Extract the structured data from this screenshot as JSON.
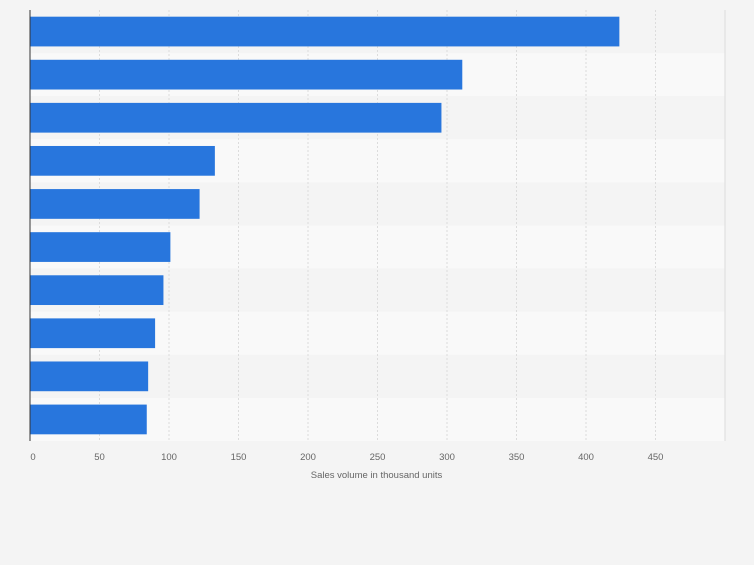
{
  "chart_data": {
    "type": "bar",
    "orientation": "horizontal",
    "categories": [
      "",
      "",
      "",
      "",
      "",
      "",
      "",
      "",
      "",
      ""
    ],
    "values": [
      424,
      311,
      296,
      133,
      122,
      101,
      96,
      90,
      85,
      84
    ],
    "title": "",
    "xlabel": "Sales volume in thousand units",
    "ylabel": "",
    "xlim": [
      0,
      500
    ],
    "x_ticks": [
      0,
      50,
      100,
      150,
      200,
      250,
      300,
      350,
      400,
      450
    ],
    "grid": true,
    "bar_color": "#2876dd",
    "stripe_colors": [
      "#f4f4f4",
      "#f9f9f9"
    ],
    "background_color": "#f4f4f4"
  }
}
